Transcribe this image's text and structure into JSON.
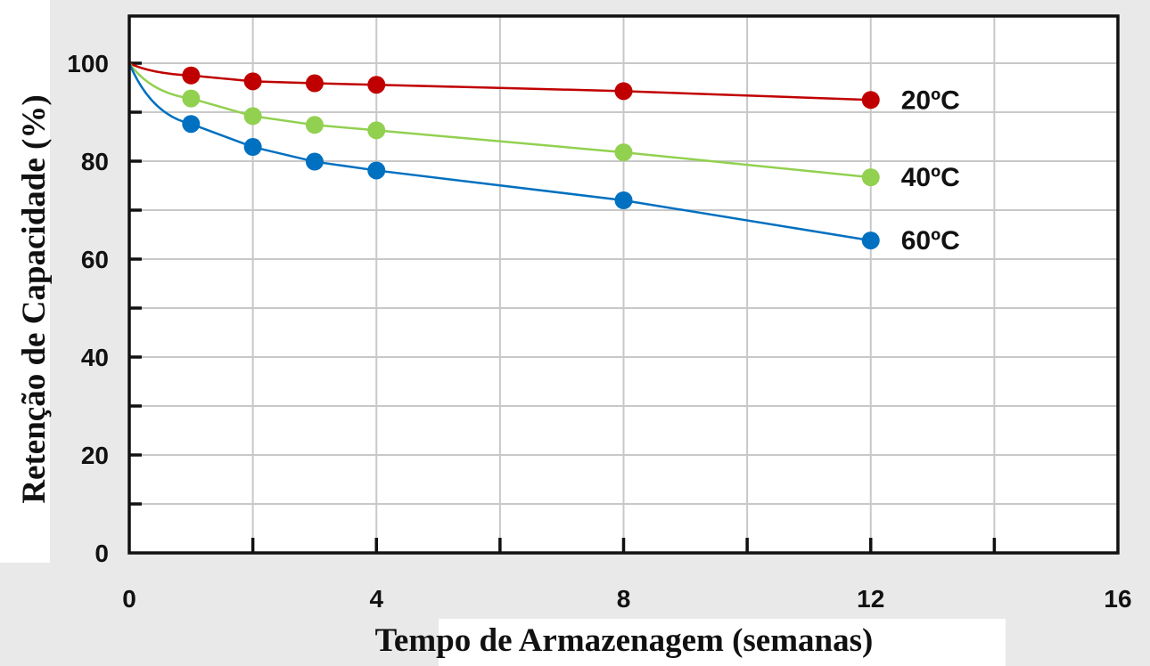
{
  "chart_data": {
    "type": "line",
    "xlabel": "Tempo de Armazenagem (semanas)",
    "ylabel": "Retenção de Capacidade (%)",
    "xlim": [
      0,
      16
    ],
    "ylim": [
      0,
      110
    ],
    "x_ticks": [
      0,
      4,
      8,
      12,
      16
    ],
    "y_ticks": [
      0,
      20,
      40,
      60,
      80,
      100
    ],
    "x_minor_ticks": [
      2,
      6,
      10,
      14
    ],
    "y_minor_ticks": [
      10,
      30,
      50,
      70,
      90
    ],
    "grid": true,
    "series": [
      {
        "name": "20ºC",
        "color": "#c00000",
        "start": [
          0,
          100
        ],
        "x": [
          1,
          2,
          3,
          4,
          8,
          12
        ],
        "y": [
          97.5,
          96.3,
          95.9,
          95.6,
          94.3,
          92.5
        ]
      },
      {
        "name": "40ºC",
        "color": "#92d050",
        "start": [
          0,
          100
        ],
        "x": [
          1,
          2,
          3,
          4,
          8,
          12
        ],
        "y": [
          92.8,
          89.2,
          87.4,
          86.3,
          81.8,
          76.7
        ]
      },
      {
        "name": "60ºC",
        "color": "#0070c0",
        "start": [
          0,
          100
        ],
        "x": [
          1,
          2,
          3,
          4,
          8,
          12
        ],
        "y": [
          87.6,
          82.9,
          79.9,
          78.1,
          72.0,
          63.8
        ]
      }
    ]
  }
}
